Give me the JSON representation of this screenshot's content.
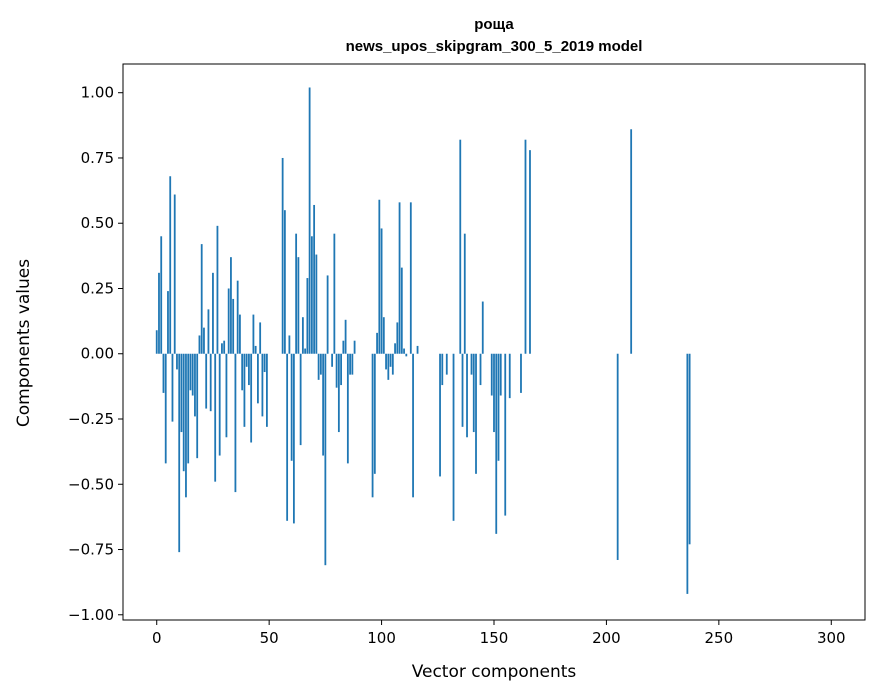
{
  "chart_data": {
    "type": "bar",
    "title": "роща",
    "subtitle": "news_upos_skipgram_300_5_2019 model",
    "xlabel": "Vector components",
    "ylabel": "Components values",
    "xlim": [
      -15,
      315
    ],
    "ylim": [
      -1.02,
      1.11
    ],
    "xticks": [
      0,
      50,
      100,
      150,
      200,
      250,
      300
    ],
    "yticks": [
      -1.0,
      -0.75,
      -0.5,
      -0.25,
      0.0,
      0.25,
      0.5,
      0.75,
      1.0
    ],
    "ytick_labels": [
      "−1.00",
      "−0.75",
      "−0.50",
      "−0.25",
      "0.00",
      "0.25",
      "0.50",
      "0.75",
      "1.00"
    ],
    "grid": false,
    "bar_color": "#1f77b4",
    "values": [
      0.09,
      0.31,
      0.45,
      -0.15,
      -0.42,
      0.24,
      0.68,
      -0.26,
      0.61,
      -0.06,
      -0.76,
      -0.3,
      -0.45,
      -0.55,
      -0.42,
      -0.14,
      -0.16,
      -0.24,
      -0.4,
      0.07,
      0.42,
      0.1,
      -0.21,
      0.17,
      -0.22,
      0.31,
      -0.49,
      0.49,
      -0.39,
      0.04,
      0.05,
      -0.32,
      0.25,
      0.37,
      0.21,
      -0.53,
      0.28,
      0.15,
      -0.14,
      -0.28,
      -0.05,
      -0.12,
      -0.34,
      0.15,
      0.03,
      -0.19,
      0.12,
      -0.24,
      -0.07,
      -0.28,
      0.0,
      0.0,
      0.0,
      0.0,
      0.0,
      0.0,
      0.75,
      0.55,
      -0.64,
      0.07,
      -0.41,
      -0.65,
      0.46,
      0.37,
      -0.35,
      0.14,
      0.02,
      0.29,
      1.02,
      0.45,
      0.57,
      0.38,
      -0.1,
      -0.08,
      -0.39,
      -0.81,
      0.3,
      0.0,
      -0.05,
      0.46,
      -0.13,
      -0.3,
      -0.12,
      0.05,
      0.13,
      -0.42,
      -0.08,
      -0.08,
      0.05,
      0.0,
      0.0,
      0.0,
      0.0,
      0.0,
      0.0,
      0.0,
      -0.55,
      -0.46,
      0.08,
      0.59,
      0.48,
      0.14,
      -0.06,
      -0.1,
      -0.05,
      -0.08,
      0.04,
      0.12,
      0.58,
      0.33,
      0.02,
      -0.01,
      0.0,
      0.58,
      -0.55,
      0.0,
      0.03,
      0.0,
      0.0,
      0.0,
      0.0,
      0.0,
      0.0,
      0.0,
      0.0,
      0.0,
      -0.47,
      -0.12,
      0.0,
      -0.08,
      0.0,
      0.0,
      -0.64,
      0.0,
      0.0,
      0.82,
      -0.28,
      0.46,
      -0.32,
      0.0,
      -0.08,
      -0.3,
      -0.46,
      0.0,
      -0.12,
      0.2,
      0.0,
      0.0,
      0.0,
      -0.16,
      -0.3,
      -0.69,
      -0.41,
      -0.16,
      0.0,
      -0.62,
      0.0,
      -0.17,
      0.0,
      0.0,
      0.0,
      0.0,
      -0.15,
      0.0,
      0.82,
      0.0,
      0.78,
      0.0,
      0.0,
      0.0,
      0.0,
      0.0,
      0.0,
      0.0,
      0.0,
      0.0,
      0.0,
      0.0,
      0.0,
      0.0,
      0.0,
      0.0,
      0.0,
      0.0,
      0.0,
      0.0,
      0.0,
      0.0,
      0.0,
      0.0,
      0.0,
      0.0,
      0.0,
      0.0,
      0.0,
      0.0,
      0.0,
      0.0,
      0.0,
      0.0,
      0.0,
      0.0,
      0.0,
      0.0,
      0.0,
      -0.79,
      0.0,
      0.0,
      0.0,
      0.0,
      0.0,
      0.86,
      0.0,
      0.0,
      0.0,
      0.0,
      0.0,
      0.0,
      0.0,
      0.0,
      0.0,
      0.0,
      0.0,
      0.0,
      0.0,
      0.0,
      0.0,
      0.0,
      0.0,
      0.0,
      0.0,
      0.0,
      0.0,
      0.0,
      0.0,
      0.0,
      -0.92,
      -0.73,
      0.0,
      0.0,
      0.0,
      0.0,
      0.0,
      0.0,
      0.0,
      0.0,
      0.0,
      0.0,
      0.0,
      0.0,
      0.0,
      0.0,
      0.0,
      0.0,
      0.0,
      0.0,
      0.0,
      0.0,
      0.0,
      0.0,
      0.0,
      0.0,
      0.0,
      0.0,
      0.0,
      0.0,
      0.0,
      0.0,
      0.0,
      0.0,
      0.0,
      0.0,
      0.0,
      0.0,
      0.0,
      0.0,
      0.0,
      0.0,
      0.0,
      0.0,
      0.0,
      0.0,
      0.0,
      0.0,
      0.0,
      0.0,
      0.0,
      0.0,
      0.0,
      0.0,
      0.0,
      0.0,
      0.0,
      0.0,
      0.0,
      0.0,
      0.0,
      0.0,
      0.0,
      0.0
    ]
  }
}
